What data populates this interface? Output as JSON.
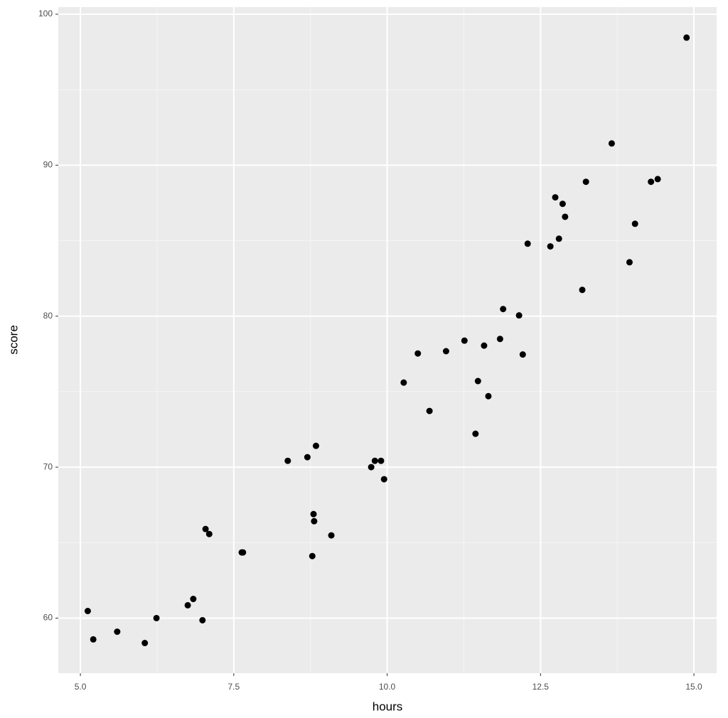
{
  "chart_data": {
    "type": "scatter",
    "x_label": "hours",
    "y_label": "score",
    "x": [
      5.12,
      5.21,
      5.6,
      6.05,
      6.24,
      6.75,
      6.84,
      6.99,
      7.04,
      7.1,
      7.63,
      7.65,
      8.38,
      8.7,
      8.84,
      8.78,
      8.8,
      8.81,
      9.09,
      9.74,
      9.8,
      9.9,
      9.95,
      10.27,
      10.5,
      10.69,
      10.96,
      11.26,
      11.44,
      11.48,
      11.58,
      11.65,
      11.84,
      11.89,
      12.15,
      12.21,
      12.29,
      12.66,
      12.74,
      12.8,
      12.86,
      12.9,
      13.18,
      13.24,
      13.66,
      13.95,
      14.04,
      14.3,
      14.41,
      14.88
    ],
    "values": [
      60.47,
      58.59,
      59.1,
      58.35,
      60.0,
      60.85,
      61.27,
      59.86,
      65.9,
      65.57,
      64.35,
      64.35,
      70.42,
      70.66,
      71.41,
      64.11,
      66.89,
      66.42,
      65.48,
      70.0,
      70.42,
      70.42,
      69.2,
      75.6,
      77.53,
      73.72,
      77.68,
      78.38,
      72.21,
      75.7,
      78.05,
      74.7,
      78.49,
      80.47,
      80.05,
      77.46,
      84.8,
      84.62,
      87.87,
      85.13,
      87.44,
      86.58,
      81.74,
      88.9,
      91.44,
      83.57,
      86.12,
      88.9,
      89.08,
      98.45
    ],
    "color": "#000000",
    "xlim": [
      4.64,
      15.37
    ],
    "ylim": [
      56.35,
      100.47
    ],
    "xticks": [
      {
        "value": 5,
        "label": "5.0"
      },
      {
        "value": 7.5,
        "label": "7.5"
      },
      {
        "value": 10,
        "label": "10.0"
      },
      {
        "value": 12.5,
        "label": "12.5"
      },
      {
        "value": 15,
        "label": "15.0"
      }
    ],
    "yticks": [
      60,
      70,
      80,
      90,
      100
    ],
    "grid": true
  }
}
